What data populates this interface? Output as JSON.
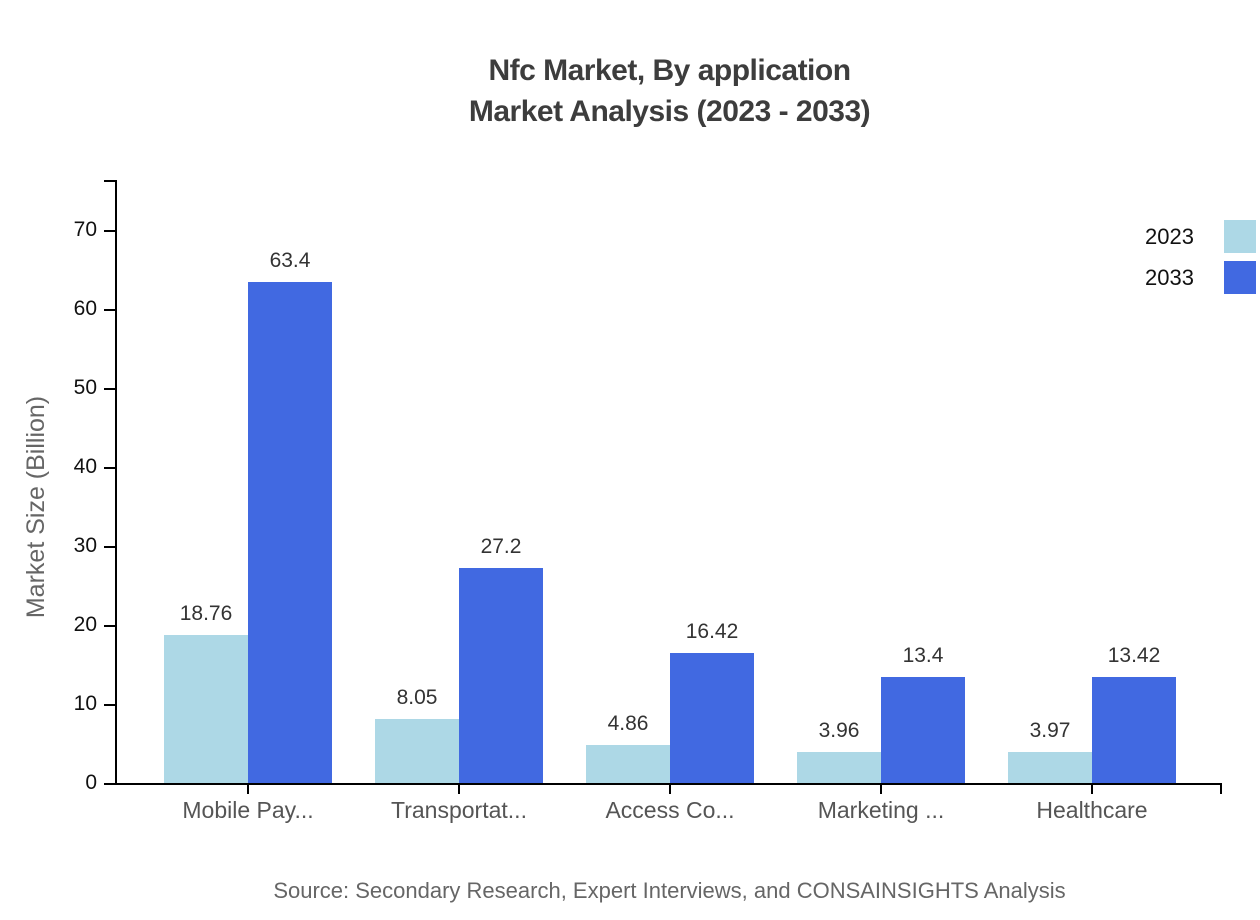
{
  "chart_data": {
    "type": "bar",
    "title": "Nfc Market, By application Market Analysis (2023 - 2033)",
    "title_lines": [
      "Nfc Market, By application",
      "Market Analysis (2023 - 2033)"
    ],
    "categories": [
      "Mobile Pay...",
      "Transportat...",
      "Access Co...",
      "Marketing ...",
      "Healthcare"
    ],
    "series": [
      {
        "name": "2023",
        "color": "#ADD8E6",
        "values": [
          18.76,
          8.05,
          4.86,
          3.96,
          3.97
        ]
      },
      {
        "name": "2033",
        "color": "#4169E1",
        "values": [
          63.4,
          27.2,
          16.42,
          13.4,
          13.42
        ]
      }
    ],
    "ylabel": "Market Size (Billion)",
    "xlabel": "",
    "yticks": [
      0,
      10,
      20,
      30,
      40,
      50,
      60,
      70
    ],
    "ylim": [
      0,
      76
    ],
    "grid": false,
    "legend_position": "top-right",
    "axis_color": "#000000",
    "title_color": "#3d3d3d",
    "tick_label_color": "#111111",
    "category_label_color": "#555555",
    "value_label_color": "#333333",
    "source": "Source: Secondary Research, Expert Interviews, and CONSAINSIGHTS Analysis"
  }
}
